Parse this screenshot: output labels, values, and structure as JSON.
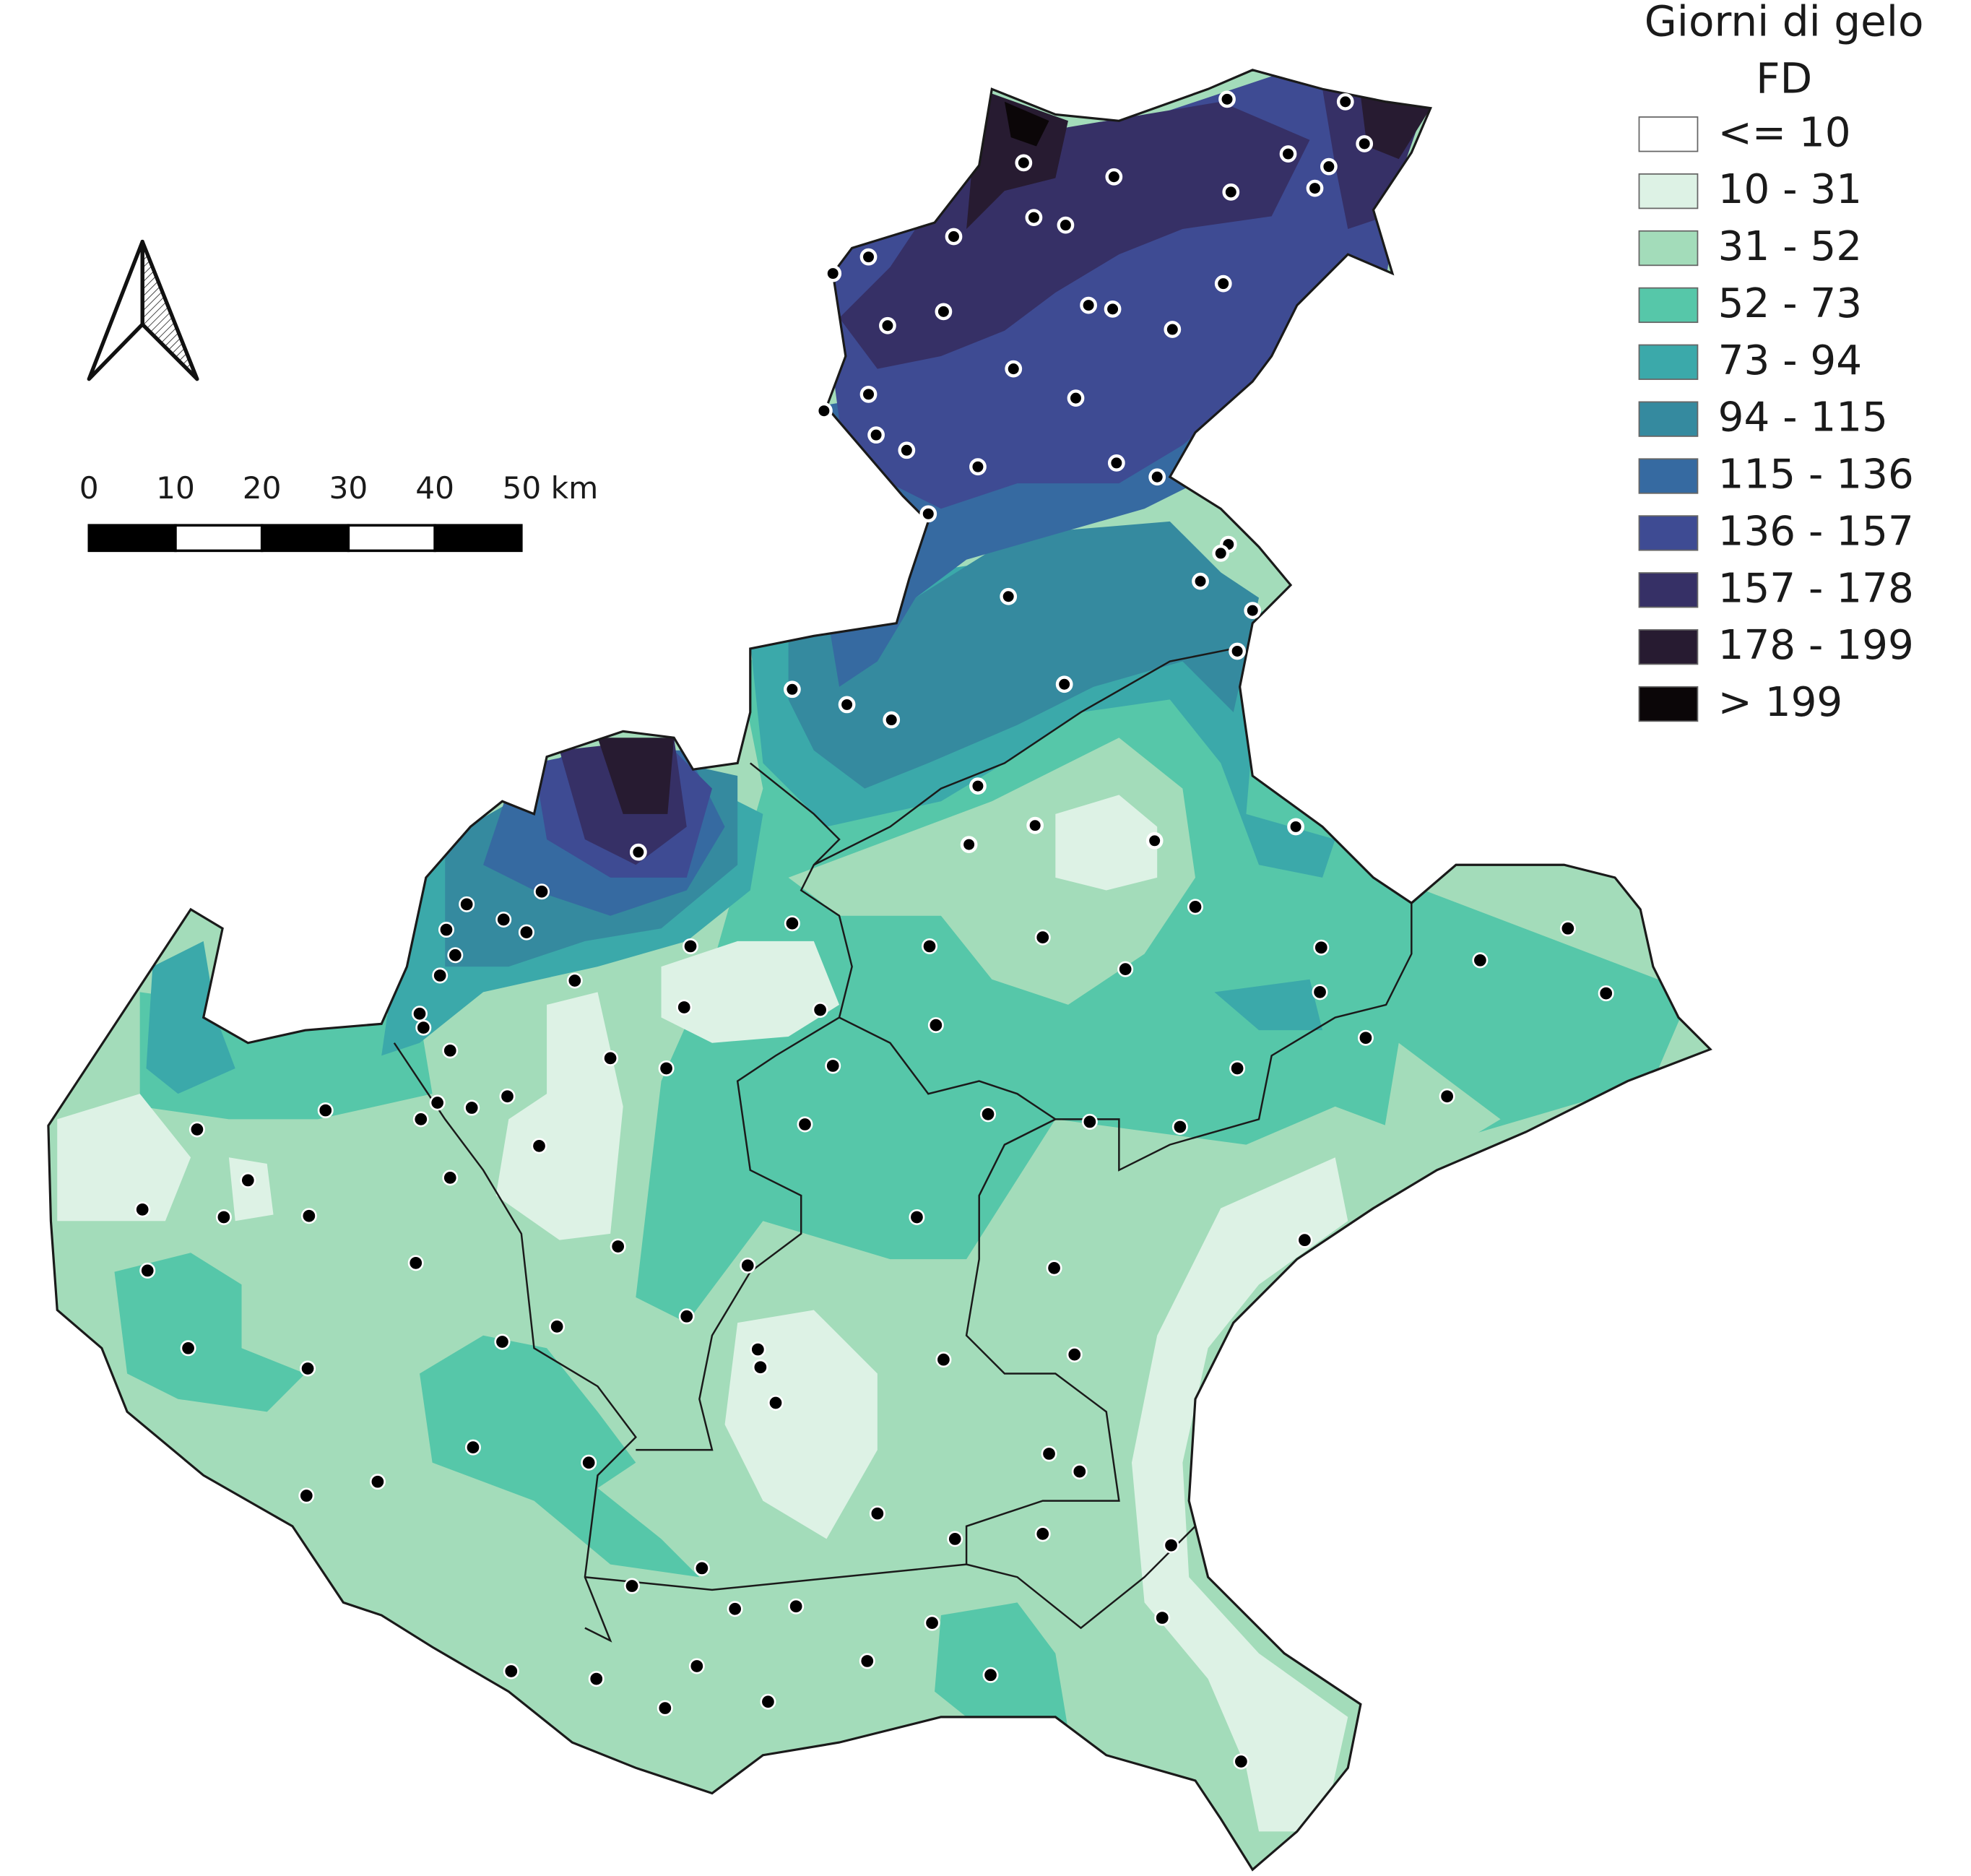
{
  "legend": {
    "title_lines": [
      "Giorni di gelo",
      "FD"
    ],
    "items": [
      {
        "label": "<= 10",
        "color": "#ffffff"
      },
      {
        "label": "10 - 31",
        "color": "#ddf2e5"
      },
      {
        "label": "31 - 52",
        "color": "#a3dcba"
      },
      {
        "label": "52 - 73",
        "color": "#56c7a9"
      },
      {
        "label": "73 - 94",
        "color": "#3ba9aa"
      },
      {
        "label": "94 - 115",
        "color": "#358a9f"
      },
      {
        "label": "115 - 136",
        "color": "#366aa1"
      },
      {
        "label": "136 - 157",
        "color": "#3e4b93"
      },
      {
        "label": "157 - 178",
        "color": "#363066"
      },
      {
        "label": "178 - 199",
        "color": "#271b31"
      },
      {
        "label": "> 199",
        "color": "#0b0608"
      }
    ]
  },
  "scale_bar": {
    "labels": [
      "0",
      "10",
      "20",
      "30",
      "40",
      "50 km"
    ]
  }
}
